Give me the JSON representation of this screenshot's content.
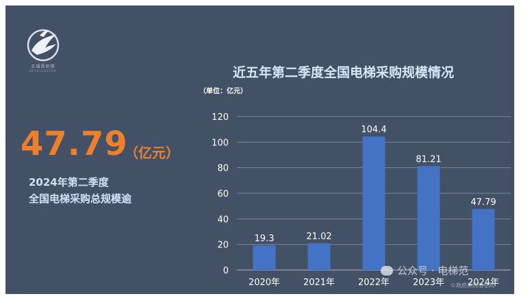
{
  "brand": {
    "name": "正福昌民梯",
    "subtitle": "ZFCELEVATOR"
  },
  "highlight": {
    "value": "47.79",
    "unit": "（亿元）",
    "line1": "2024年第二季度",
    "line2": "全国电梯采购总规模逾"
  },
  "watermark": {
    "main": "公众号 · 电梯范",
    "secondary": "©政府采购信息网"
  },
  "colors": {
    "background": "#435166",
    "bar": "#4472c4",
    "accent": "#f07f2a"
  },
  "chart_data": {
    "type": "bar",
    "title": "近五年第二季度全国电梯采购规模情况",
    "unit_label": "（单位：亿元）",
    "categories": [
      "2020年",
      "2021年",
      "2022年",
      "2023年",
      "2024年"
    ],
    "values": [
      19.3,
      21.02,
      104.4,
      81.21,
      47.79
    ],
    "data_labels": [
      "19.3",
      "21.02",
      "104.4",
      "81.21",
      "47.79"
    ],
    "xlabel": "",
    "ylabel": "",
    "ylim": [
      0,
      120
    ],
    "yticks": [
      0,
      20,
      40,
      60,
      80,
      100,
      120
    ],
    "grid": true,
    "legend": "none"
  }
}
